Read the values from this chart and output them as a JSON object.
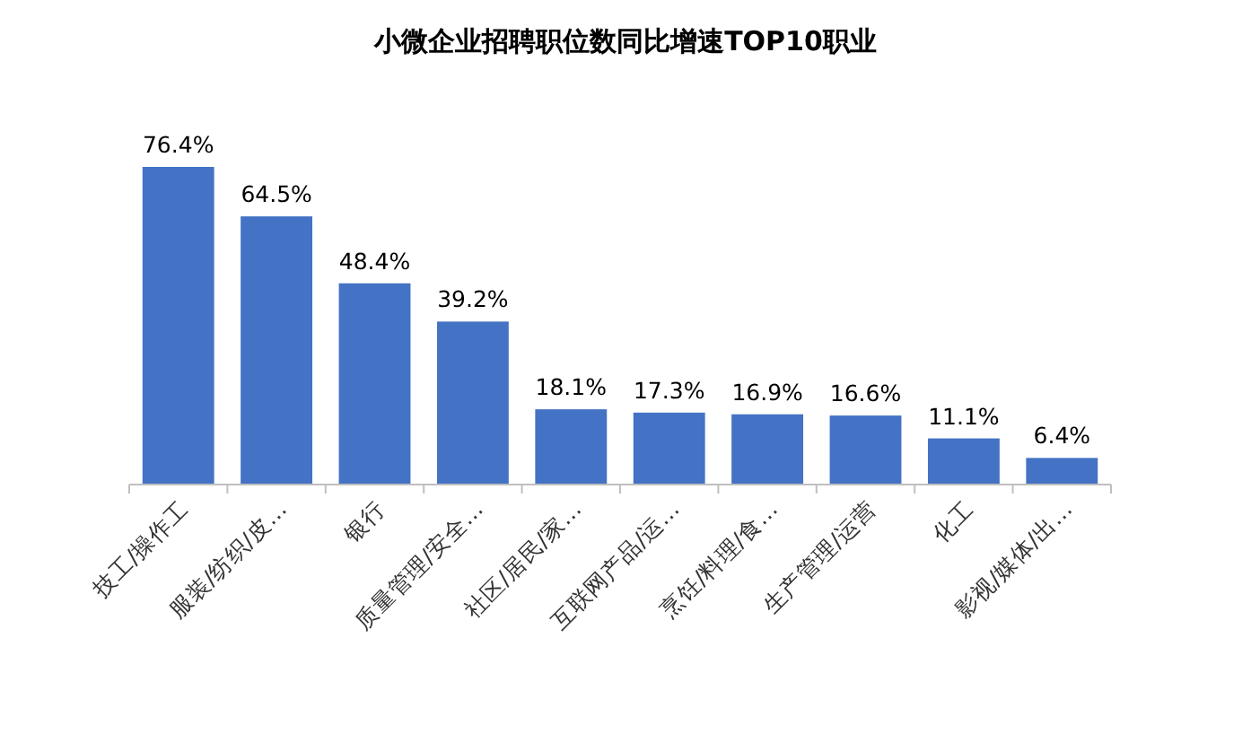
{
  "chart_data": {
    "type": "bar",
    "title": "小微企业招聘职位数同比增速TOP10职业",
    "categories": [
      "技工/操作工",
      "服装/纺织/皮…",
      "银行",
      "质量管理/安全…",
      "社区/居民/家…",
      "互联网产品/运…",
      "烹饪/料理/食…",
      "生产管理/运营",
      "化工",
      "影视/媒体/出…"
    ],
    "values": [
      76.4,
      64.5,
      48.4,
      39.2,
      18.1,
      17.3,
      16.9,
      16.6,
      11.1,
      6.4
    ],
    "value_labels": [
      "76.4%",
      "64.5%",
      "48.4%",
      "39.2%",
      "18.1%",
      "17.3%",
      "16.9%",
      "16.6%",
      "11.1%",
      "6.4%"
    ],
    "color": "#4472c4"
  }
}
